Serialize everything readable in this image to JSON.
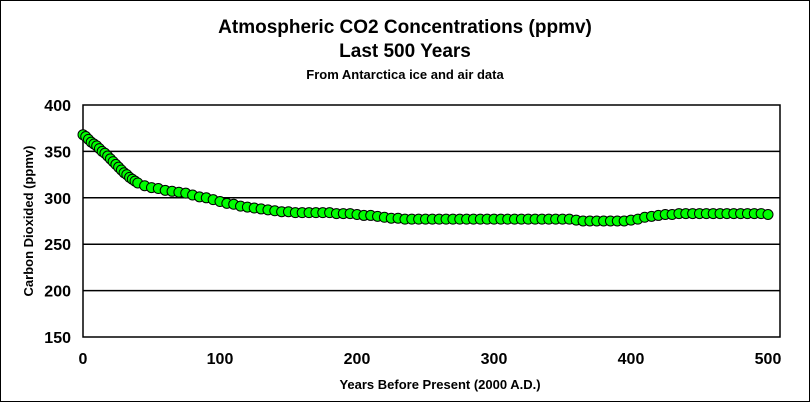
{
  "chart_data": {
    "type": "scatter",
    "title": "Atmospheric CO2 Concentrations (ppmv)",
    "subtitle": "Last 500 Years",
    "subtitle2": "From Antarctica ice and air data",
    "xlabel": "Years Before Present (2000 A.D.)",
    "ylabel": "Carbon Dioxided (ppmv)",
    "xlim": [
      0,
      500
    ],
    "ylim": [
      150,
      400
    ],
    "xticks": [
      0,
      100,
      200,
      300,
      400,
      500
    ],
    "yticks": [
      150,
      200,
      250,
      300,
      350,
      400
    ],
    "grid": "horizontal",
    "marker_color": "#00ff00",
    "marker_edge": "#000000",
    "points": [
      [
        0,
        368
      ],
      [
        2,
        366
      ],
      [
        4,
        363
      ],
      [
        6,
        360
      ],
      [
        8,
        358
      ],
      [
        10,
        356
      ],
      [
        12,
        353
      ],
      [
        14,
        350
      ],
      [
        16,
        348
      ],
      [
        18,
        345
      ],
      [
        20,
        342
      ],
      [
        22,
        339
      ],
      [
        24,
        336
      ],
      [
        26,
        333
      ],
      [
        28,
        330
      ],
      [
        30,
        327
      ],
      [
        32,
        325
      ],
      [
        34,
        322
      ],
      [
        36,
        320
      ],
      [
        38,
        318
      ],
      [
        40,
        316
      ],
      [
        45,
        313
      ],
      [
        50,
        311
      ],
      [
        55,
        310
      ],
      [
        60,
        308
      ],
      [
        65,
        307
      ],
      [
        70,
        306
      ],
      [
        75,
        305
      ],
      [
        80,
        303
      ],
      [
        85,
        301
      ],
      [
        90,
        300
      ],
      [
        95,
        298
      ],
      [
        100,
        296
      ],
      [
        105,
        294
      ],
      [
        110,
        293
      ],
      [
        115,
        291
      ],
      [
        120,
        290
      ],
      [
        125,
        289
      ],
      [
        130,
        288
      ],
      [
        135,
        287
      ],
      [
        140,
        286
      ],
      [
        145,
        285
      ],
      [
        150,
        285
      ],
      [
        155,
        284
      ],
      [
        160,
        284
      ],
      [
        165,
        284
      ],
      [
        170,
        284
      ],
      [
        175,
        284
      ],
      [
        180,
        284
      ],
      [
        185,
        283
      ],
      [
        190,
        283
      ],
      [
        195,
        283
      ],
      [
        200,
        282
      ],
      [
        205,
        281
      ],
      [
        210,
        281
      ],
      [
        215,
        280
      ],
      [
        220,
        279
      ],
      [
        225,
        278
      ],
      [
        230,
        278
      ],
      [
        235,
        277
      ],
      [
        240,
        277
      ],
      [
        245,
        277
      ],
      [
        250,
        277
      ],
      [
        255,
        277
      ],
      [
        260,
        277
      ],
      [
        265,
        277
      ],
      [
        270,
        277
      ],
      [
        275,
        277
      ],
      [
        280,
        277
      ],
      [
        285,
        277
      ],
      [
        290,
        277
      ],
      [
        295,
        277
      ],
      [
        300,
        277
      ],
      [
        305,
        277
      ],
      [
        310,
        277
      ],
      [
        315,
        277
      ],
      [
        320,
        277
      ],
      [
        325,
        277
      ],
      [
        330,
        277
      ],
      [
        335,
        277
      ],
      [
        340,
        277
      ],
      [
        345,
        277
      ],
      [
        350,
        277
      ],
      [
        355,
        277
      ],
      [
        360,
        276
      ],
      [
        365,
        275
      ],
      [
        370,
        275
      ],
      [
        375,
        275
      ],
      [
        380,
        275
      ],
      [
        385,
        275
      ],
      [
        390,
        275
      ],
      [
        395,
        275
      ],
      [
        400,
        276
      ],
      [
        405,
        277
      ],
      [
        410,
        279
      ],
      [
        415,
        280
      ],
      [
        420,
        281
      ],
      [
        425,
        282
      ],
      [
        430,
        282
      ],
      [
        435,
        283
      ],
      [
        440,
        283
      ],
      [
        445,
        283
      ],
      [
        450,
        283
      ],
      [
        455,
        283
      ],
      [
        460,
        283
      ],
      [
        465,
        283
      ],
      [
        470,
        283
      ],
      [
        475,
        283
      ],
      [
        480,
        283
      ],
      [
        485,
        283
      ],
      [
        490,
        283
      ],
      [
        495,
        283
      ],
      [
        500,
        282
      ]
    ]
  }
}
